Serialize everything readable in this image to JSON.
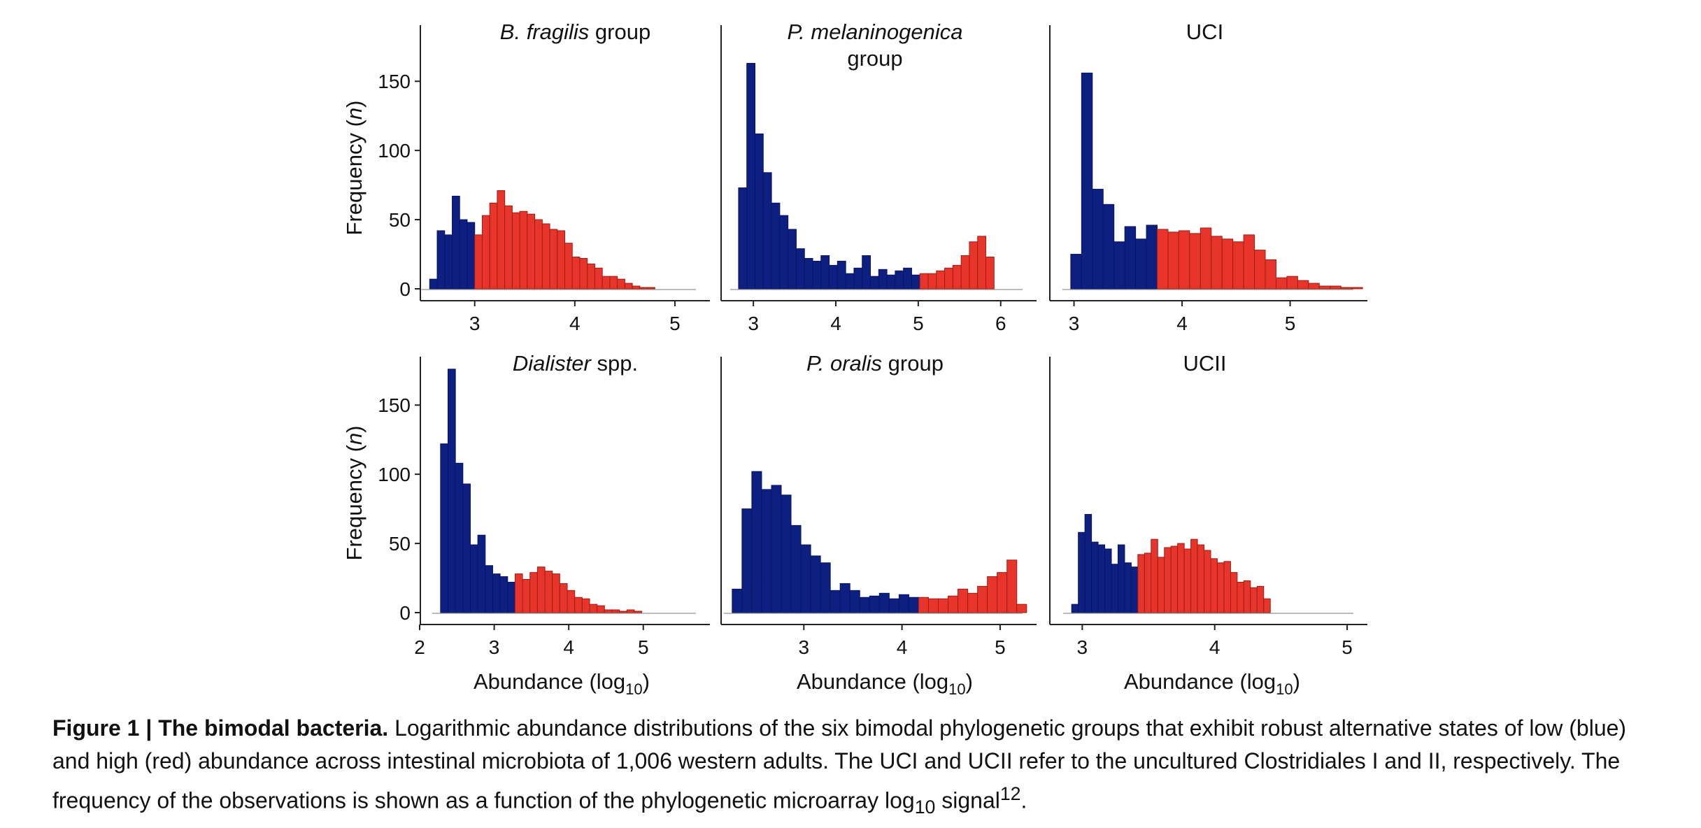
{
  "figure": {
    "caption": {
      "lead": "Figure 1 | The bimodal bacteria.",
      "text_1": " Logarithmic abundance distributions of the six bimodal phylogenetic groups that exhibit robust alternative states of low (blue) and high (red) abundance across intestinal microbiota of 1,006 western adults. The UCI and UCII refer to the uncultured Clostridiales I and II, respectively. The frequency of the observations is shown as a function of the phylogenetic microarray log",
      "sub": "10",
      "text_2": " signal",
      "sup": "12",
      "end": "."
    },
    "ylabel": {
      "main": "Frequency (",
      "var": "n",
      "close": ")"
    },
    "xlabel": {
      "main": "Abundance (log",
      "sub": "10",
      "close": ")"
    }
  },
  "chart_data": [
    {
      "type": "bar",
      "title_italic": "B. fragilis",
      "title_rest": " group",
      "xlim": [
        2.45,
        5.28
      ],
      "ylim": [
        0,
        185
      ],
      "xticks": [
        3,
        4,
        5
      ],
      "yticks": [
        0,
        50,
        100,
        150
      ],
      "bin_start": 2.55,
      "bin_width": 0.075,
      "values": [
        7,
        42,
        39,
        67,
        50,
        48,
        39,
        53,
        62,
        71,
        60,
        55,
        56,
        54,
        50,
        47,
        43,
        42,
        33,
        23,
        22,
        18,
        15,
        9,
        9,
        7,
        4,
        2,
        1,
        1
      ],
      "colors": [
        "blue",
        "blue",
        "blue",
        "blue",
        "blue",
        "blue",
        "red",
        "red",
        "red",
        "red",
        "red",
        "red",
        "red",
        "red",
        "red",
        "red",
        "red",
        "red",
        "red",
        "red",
        "red",
        "red",
        "red",
        "red",
        "red",
        "red",
        "red",
        "red",
        "red",
        "red"
      ]
    },
    {
      "type": "bar",
      "title_italic": "P. melaninogenica",
      "title_line2": "group",
      "xlim": [
        2.6,
        6.35
      ],
      "ylim": [
        0,
        185
      ],
      "xticks": [
        3,
        4,
        5,
        6
      ],
      "yticks": [
        0,
        50,
        100,
        150
      ],
      "bin_start": 2.82,
      "bin_width": 0.1,
      "values": [
        73,
        163,
        112,
        84,
        62,
        53,
        43,
        29,
        22,
        20,
        24,
        17,
        20,
        11,
        15,
        24,
        9,
        14,
        10,
        13,
        15,
        10,
        11,
        11,
        13,
        15,
        17,
        24,
        34,
        38,
        23
      ],
      "colors": [
        "blue",
        "blue",
        "blue",
        "blue",
        "blue",
        "blue",
        "blue",
        "blue",
        "blue",
        "blue",
        "blue",
        "blue",
        "blue",
        "blue",
        "blue",
        "blue",
        "blue",
        "blue",
        "blue",
        "blue",
        "blue",
        "blue",
        "red",
        "red",
        "red",
        "red",
        "red",
        "red",
        "red",
        "red",
        "red"
      ]
    },
    {
      "type": "bar",
      "title_plain": "UCI",
      "xlim": [
        2.77,
        5.65
      ],
      "ylim": [
        0,
        185
      ],
      "xticks": [
        3,
        4,
        5
      ],
      "yticks": [
        0,
        50,
        100,
        150
      ],
      "bin_start": 2.97,
      "bin_width": 0.1,
      "values": [
        25,
        156,
        72,
        61,
        34,
        45,
        36,
        46,
        43,
        41,
        42,
        40,
        44,
        38,
        36,
        34,
        39,
        28,
        21,
        8,
        9,
        6,
        4,
        2,
        2,
        1,
        1
      ],
      "colors": [
        "blue",
        "blue",
        "blue",
        "blue",
        "blue",
        "blue",
        "blue",
        "blue",
        "red",
        "red",
        "red",
        "red",
        "red",
        "red",
        "red",
        "red",
        "red",
        "red",
        "red",
        "red",
        "red",
        "red",
        "red",
        "red",
        "red",
        "red",
        "red"
      ]
    },
    {
      "type": "bar",
      "title_italic": "Dialister",
      "title_rest": " spp.",
      "xlim": [
        2.0,
        5.8
      ],
      "ylim": [
        0,
        185
      ],
      "xticks": [
        2,
        3,
        4,
        5
      ],
      "yticks": [
        0,
        50,
        100,
        150
      ],
      "bin_start": 2.28,
      "bin_width": 0.1,
      "values": [
        122,
        176,
        108,
        93,
        49,
        56,
        34,
        28,
        26,
        22,
        28,
        24,
        29,
        33,
        30,
        28,
        21,
        16,
        11,
        10,
        6,
        5,
        2,
        2,
        1,
        2,
        1
      ],
      "colors": [
        "blue",
        "blue",
        "blue",
        "blue",
        "blue",
        "blue",
        "blue",
        "blue",
        "blue",
        "blue",
        "red",
        "red",
        "red",
        "red",
        "red",
        "red",
        "red",
        "red",
        "red",
        "red",
        "red",
        "red",
        "red",
        "red",
        "red",
        "red",
        "red"
      ]
    },
    {
      "type": "bar",
      "title_italic": "P. oralis",
      "title_rest": " group",
      "xlim": [
        2.15,
        5.3
      ],
      "ylim": [
        0,
        185
      ],
      "xticks": [
        3,
        4,
        5
      ],
      "yticks": [
        0,
        50,
        100,
        150
      ],
      "bin_start": 2.27,
      "bin_width": 0.1,
      "values": [
        17,
        75,
        102,
        89,
        92,
        85,
        63,
        49,
        41,
        36,
        16,
        21,
        16,
        11,
        12,
        14,
        10,
        13,
        11,
        11,
        10,
        10,
        12,
        17,
        14,
        19,
        26,
        29,
        38,
        6
      ],
      "colors": [
        "blue",
        "blue",
        "blue",
        "blue",
        "blue",
        "blue",
        "blue",
        "blue",
        "blue",
        "blue",
        "blue",
        "blue",
        "blue",
        "blue",
        "blue",
        "blue",
        "blue",
        "blue",
        "blue",
        "red",
        "red",
        "red",
        "red",
        "red",
        "red",
        "red",
        "red",
        "red",
        "red",
        "red"
      ]
    },
    {
      "type": "bar",
      "title_plain": "UCII",
      "xlim": [
        2.75,
        5.1
      ],
      "ylim": [
        0,
        185
      ],
      "xticks": [
        3,
        4,
        5
      ],
      "yticks": [
        0,
        50,
        100,
        150
      ],
      "bin_start": 2.92,
      "bin_width": 0.05,
      "values": [
        6,
        58,
        71,
        51,
        49,
        46,
        35,
        49,
        36,
        33,
        42,
        43,
        53,
        40,
        47,
        48,
        50,
        46,
        53,
        49,
        45,
        39,
        36,
        37,
        29,
        22,
        23,
        18,
        19,
        10
      ],
      "colors": [
        "blue",
        "blue",
        "blue",
        "blue",
        "blue",
        "blue",
        "blue",
        "blue",
        "blue",
        "blue",
        "red",
        "red",
        "red",
        "red",
        "red",
        "red",
        "red",
        "red",
        "red",
        "red",
        "red",
        "red",
        "red",
        "red",
        "red",
        "red",
        "red",
        "red",
        "red",
        "red"
      ]
    }
  ]
}
